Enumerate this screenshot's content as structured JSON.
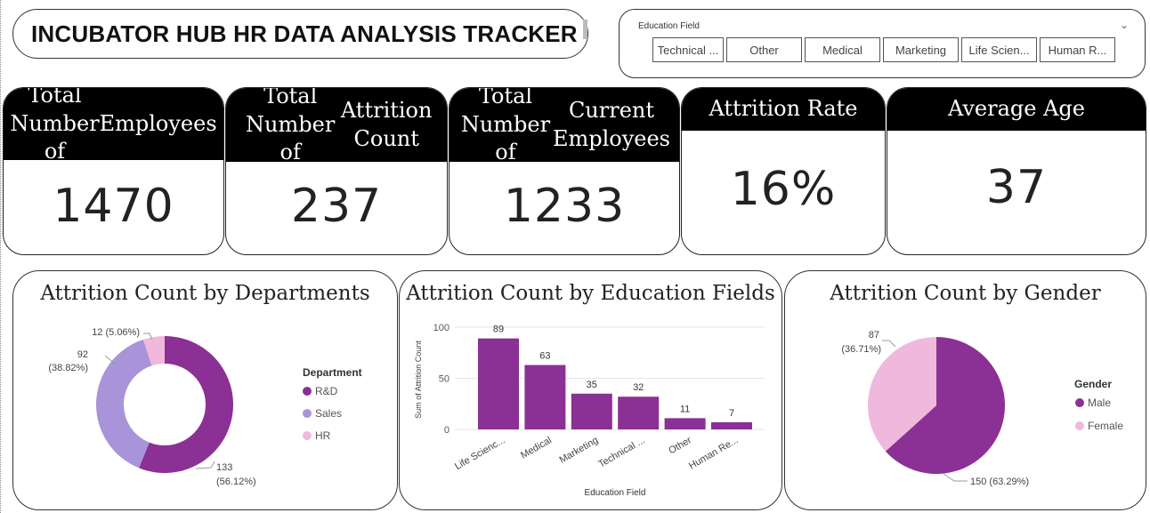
{
  "header": {
    "title": "INCUBATOR HUB HR DATA ANALYSIS TRACKER"
  },
  "slicer": {
    "label": "Education Field",
    "items": [
      "Technical ...",
      "Other",
      "Medical",
      "Marketing",
      "Life Scien...",
      "Human R..."
    ]
  },
  "kpis": [
    {
      "label": "Total Number of Employees",
      "value": "1470"
    },
    {
      "label": "Total Number of Attrition Count",
      "value": "237"
    },
    {
      "label": "Total Number of Current Employees",
      "value": "1233"
    },
    {
      "label": "Attrition Rate",
      "value": "16%"
    },
    {
      "label": "Average Age",
      "value": "37"
    }
  ],
  "colors": {
    "dark_purple": "#8b3094",
    "light_purple": "#a993d9",
    "pink": "#f0b8dd"
  },
  "chart_data": [
    {
      "type": "pie",
      "style": "donut",
      "title": "Attrition Count by Departments",
      "legend_title": "Department",
      "legend_position": "right",
      "slices": [
        {
          "name": "R&D",
          "value": 133,
          "label": "133",
          "pct_label": "(56.12%)",
          "color": "#8b3094"
        },
        {
          "name": "Sales",
          "value": 92,
          "label": "92",
          "pct_label": "(38.82%)",
          "color": "#a993d9"
        },
        {
          "name": "HR",
          "value": 12,
          "label": "12 (5.06%)",
          "pct_label": "",
          "color": "#f0b8dd"
        }
      ]
    },
    {
      "type": "bar",
      "title": "Attrition Count by Education Fields",
      "xlabel": "Education Field",
      "ylabel": "Sum of Attrition Count",
      "ylim": [
        0,
        100
      ],
      "yticks": [
        0,
        50,
        100
      ],
      "categories": [
        "Life Scienc...",
        "Medical",
        "Marketing",
        "Technical ...",
        "Other",
        "Human Re..."
      ],
      "values": [
        89,
        63,
        35,
        32,
        11,
        7
      ],
      "color": "#8b3094"
    },
    {
      "type": "pie",
      "title": "Attrition Count by Gender",
      "legend_title": "Gender",
      "legend_position": "right",
      "slices": [
        {
          "name": "Male",
          "value": 150,
          "label": "150 (63.29%)",
          "pct_label": "",
          "color": "#8b3094"
        },
        {
          "name": "Female",
          "value": 87,
          "label": "87",
          "pct_label": "(36.71%)",
          "color": "#f0b8dd"
        }
      ]
    }
  ]
}
